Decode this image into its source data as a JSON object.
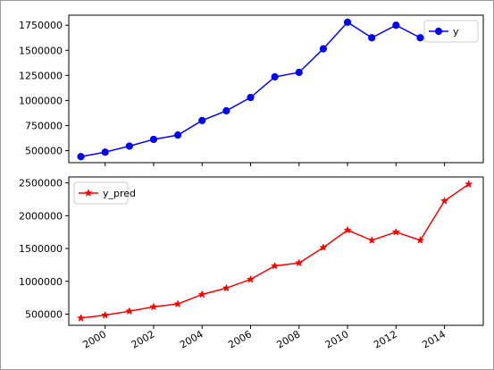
{
  "chart_data": [
    {
      "type": "line",
      "x": [
        1999,
        2000,
        2001,
        2002,
        2003,
        2004,
        2005,
        2006,
        2007,
        2008,
        2009,
        2010,
        2011,
        2012,
        2013
      ],
      "series": [
        {
          "name": "y",
          "color": "#0000ff",
          "marker": "circle",
          "values": [
            440000,
            485000,
            545000,
            612000,
            655000,
            800000,
            897000,
            1030000,
            1235000,
            1280000,
            1515000,
            1780000,
            1625000,
            1750000,
            1625000
          ]
        }
      ],
      "yticks": [
        500000,
        750000,
        1000000,
        1250000,
        1500000,
        1750000
      ],
      "ylim": [
        380000,
        1850000
      ],
      "xlim": [
        1998.5,
        2015.6
      ],
      "legend": "top-right",
      "grid": false
    },
    {
      "type": "line",
      "x": [
        1999,
        2000,
        2001,
        2002,
        2003,
        2004,
        2005,
        2006,
        2007,
        2008,
        2009,
        2010,
        2011,
        2012,
        2013,
        2014,
        2015
      ],
      "series": [
        {
          "name": "y_pred",
          "color": "#ff0000",
          "marker": "star",
          "values": [
            440000,
            485000,
            545000,
            612000,
            655000,
            800000,
            897000,
            1030000,
            1235000,
            1280000,
            1515000,
            1780000,
            1625000,
            1750000,
            1625000,
            2225000,
            2480000
          ]
        }
      ],
      "yticks": [
        500000,
        1000000,
        1500000,
        2000000,
        2500000
      ],
      "xticks": [
        2000,
        2002,
        2004,
        2006,
        2008,
        2010,
        2012,
        2014
      ],
      "ylim": [
        330000,
        2590000
      ],
      "xlim": [
        1998.5,
        2015.6
      ],
      "legend": "top-left",
      "grid": false
    }
  ]
}
